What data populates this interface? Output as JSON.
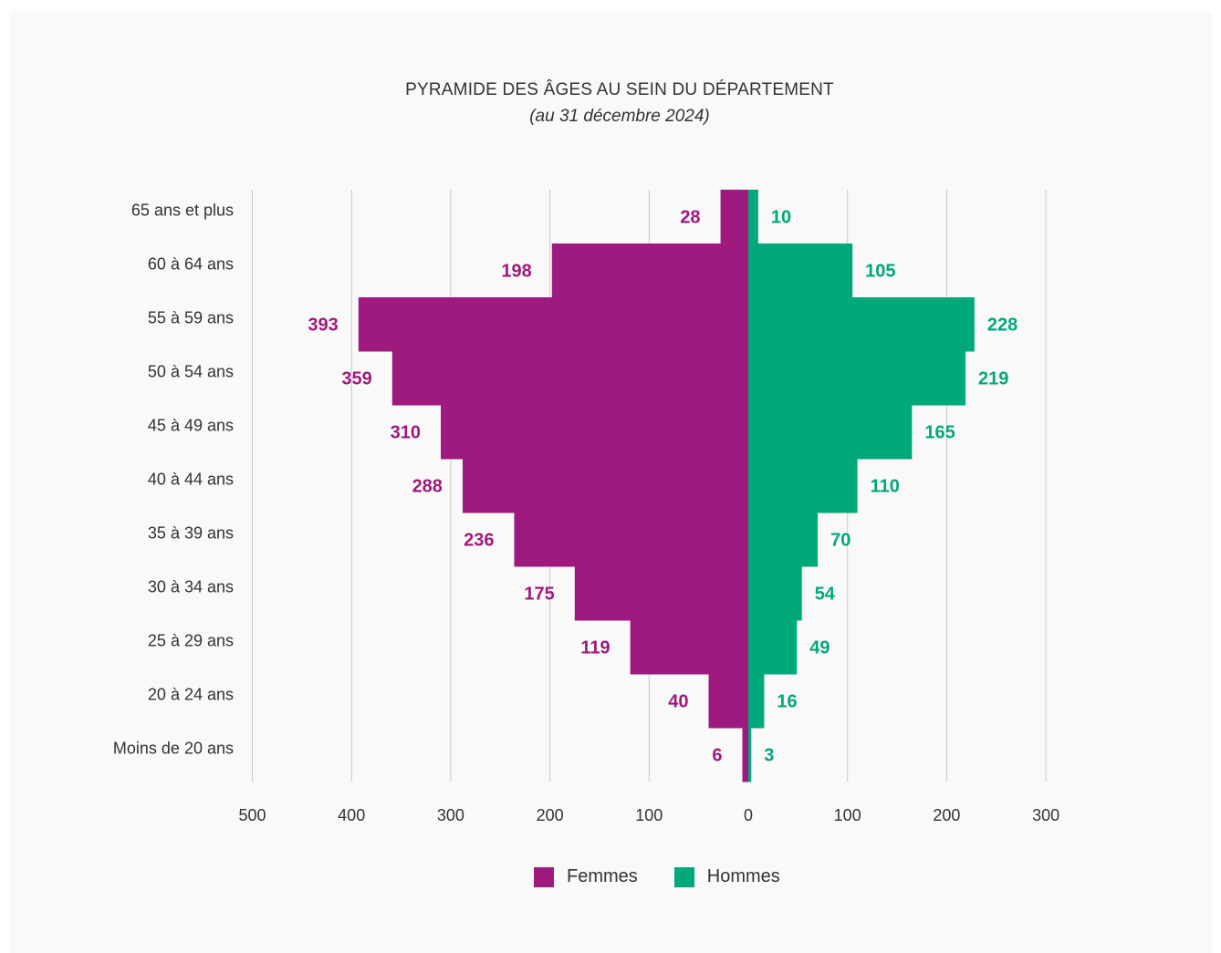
{
  "chart_data": {
    "type": "bar",
    "orientation": "horizontal-pyramid",
    "title": "PYRAMIDE DES ÂGES AU SEIN DU DÉPARTEMENT",
    "subtitle": "(au 31 décembre 2024)",
    "categories": [
      "65 ans et plus",
      "60 à 64 ans",
      "55 à 59 ans",
      "50 à 54 ans",
      "45 à 49 ans",
      "40 à 44 ans",
      "35 à 39 ans",
      "30 à 34 ans",
      "25 à 29 ans",
      "20 à 24 ans",
      "Moins de 20 ans"
    ],
    "series": [
      {
        "name": "Femmes",
        "color": "#9e1a7e",
        "side": "left",
        "values": [
          28,
          198,
          393,
          359,
          310,
          288,
          236,
          175,
          119,
          40,
          6
        ]
      },
      {
        "name": "Hommes",
        "color": "#00a87a",
        "side": "right",
        "values": [
          10,
          105,
          228,
          219,
          165,
          110,
          70,
          54,
          49,
          16,
          3
        ]
      }
    ],
    "xlim": [
      -500,
      300
    ],
    "x_ticks": [
      -500,
      -400,
      -300,
      -200,
      -100,
      0,
      100,
      200,
      300
    ],
    "x_tick_labels": [
      "500",
      "400",
      "300",
      "200",
      "100",
      "0",
      "100",
      "200",
      "300"
    ],
    "grid": "vertical",
    "legend_position": "bottom-center"
  }
}
